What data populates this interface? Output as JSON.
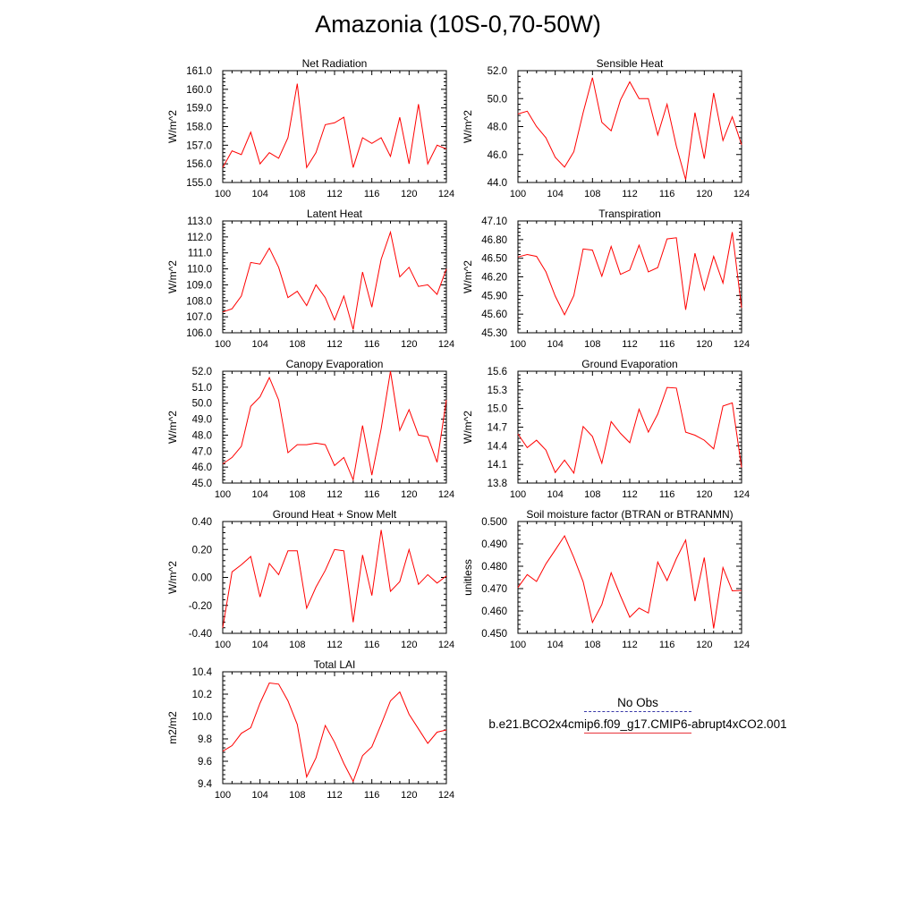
{
  "title": "Amazonia (10S-0,70-50W)",
  "colors": {
    "series": "#ff0000",
    "obs": "#3a3aa8"
  },
  "legend": {
    "obs_label": "No Obs",
    "model_label": "b.e21.BCO2x4cmip6.f09_g17.CMIP6-abrupt4xCO2.001"
  },
  "chart_data": [
    {
      "type": "line",
      "title": "Net Radiation",
      "ylabel": "W/m^2",
      "xlim": [
        100,
        124
      ],
      "ylim": [
        155,
        161
      ],
      "xticks": [
        100,
        104,
        108,
        112,
        116,
        120,
        124
      ],
      "xtick_labels": [
        "100",
        "104",
        "108",
        "112",
        "116",
        "120",
        "124"
      ],
      "yticks": [
        155,
        156,
        157,
        158,
        159,
        160,
        161
      ],
      "ytick_labels": [
        "155.0",
        "156.0",
        "157.0",
        "158.0",
        "159.0",
        "160.0",
        "161.0"
      ],
      "x": [
        100,
        101,
        102,
        103,
        104,
        105,
        106,
        107,
        108,
        109,
        110,
        111,
        112,
        113,
        114,
        115,
        116,
        117,
        118,
        119,
        120,
        121,
        122,
        123,
        124
      ],
      "values": [
        155.8,
        156.7,
        156.5,
        157.7,
        156.0,
        156.6,
        156.3,
        157.4,
        160.3,
        155.8,
        156.6,
        158.1,
        158.2,
        158.5,
        155.8,
        157.4,
        157.1,
        157.4,
        156.4,
        158.5,
        156.0,
        159.2,
        156.0,
        157.0,
        156.8
      ]
    },
    {
      "type": "line",
      "title": "Sensible Heat",
      "ylabel": "W/m^2",
      "xlim": [
        100,
        124
      ],
      "ylim": [
        44,
        52
      ],
      "xticks": [
        100,
        104,
        108,
        112,
        116,
        120,
        124
      ],
      "xtick_labels": [
        "100",
        "104",
        "108",
        "112",
        "116",
        "120",
        "124"
      ],
      "yticks": [
        44,
        46,
        48,
        50,
        52
      ],
      "ytick_labels": [
        "44.0",
        "46.0",
        "48.0",
        "50.0",
        "52.0"
      ],
      "x": [
        100,
        101,
        102,
        103,
        104,
        105,
        106,
        107,
        108,
        109,
        110,
        111,
        112,
        113,
        114,
        115,
        116,
        117,
        118,
        119,
        120,
        121,
        122,
        123,
        124
      ],
      "values": [
        48.9,
        49.1,
        48.0,
        47.2,
        45.8,
        45.1,
        46.2,
        49.0,
        51.5,
        48.3,
        47.7,
        49.9,
        51.2,
        50.0,
        50.0,
        47.4,
        49.6,
        46.6,
        44.2,
        49.0,
        45.7,
        50.4,
        47.0,
        48.7,
        46.7
      ]
    },
    {
      "type": "line",
      "title": "Latent Heat",
      "ylabel": "W/m^2",
      "xlim": [
        100,
        124
      ],
      "ylim": [
        106,
        113
      ],
      "xticks": [
        100,
        104,
        108,
        112,
        116,
        120,
        124
      ],
      "xtick_labels": [
        "100",
        "104",
        "108",
        "112",
        "116",
        "120",
        "124"
      ],
      "yticks": [
        106,
        107,
        108,
        109,
        110,
        111,
        112,
        113
      ],
      "ytick_labels": [
        "106.0",
        "107.0",
        "108.0",
        "109.0",
        "110.0",
        "111.0",
        "112.0",
        "113.0"
      ],
      "x": [
        100,
        101,
        102,
        103,
        104,
        105,
        106,
        107,
        108,
        109,
        110,
        111,
        112,
        113,
        114,
        115,
        116,
        117,
        118,
        119,
        120,
        121,
        122,
        123,
        124
      ],
      "values": [
        107.3,
        107.5,
        108.3,
        110.4,
        110.3,
        111.3,
        110.1,
        108.2,
        108.6,
        107.7,
        109.0,
        108.2,
        106.8,
        108.3,
        106.2,
        109.8,
        107.6,
        110.6,
        112.3,
        109.5,
        110.1,
        108.9,
        109.0,
        108.4,
        110.0
      ]
    },
    {
      "type": "line",
      "title": "Transpiration",
      "ylabel": "W/m^2",
      "xlim": [
        100,
        124
      ],
      "ylim": [
        45.3,
        47.1
      ],
      "xticks": [
        100,
        104,
        108,
        112,
        116,
        120,
        124
      ],
      "xtick_labels": [
        "100",
        "104",
        "108",
        "112",
        "116",
        "120",
        "124"
      ],
      "yticks": [
        45.3,
        45.6,
        45.9,
        46.2,
        46.5,
        46.8,
        47.1
      ],
      "ytick_labels": [
        "45.30",
        "45.60",
        "45.90",
        "46.20",
        "46.50",
        "46.80",
        "47.10"
      ],
      "x": [
        100,
        101,
        102,
        103,
        104,
        105,
        106,
        107,
        108,
        109,
        110,
        111,
        112,
        113,
        114,
        115,
        116,
        117,
        118,
        119,
        120,
        121,
        122,
        123,
        124
      ],
      "values": [
        46.52,
        46.56,
        46.53,
        46.28,
        45.89,
        45.59,
        45.9,
        46.65,
        46.63,
        46.21,
        46.69,
        46.24,
        46.31,
        46.71,
        46.28,
        46.35,
        46.81,
        46.83,
        45.67,
        46.58,
        45.99,
        46.53,
        46.1,
        46.92,
        45.7
      ]
    },
    {
      "type": "line",
      "title": "Canopy Evaporation",
      "ylabel": "W/m^2",
      "xlim": [
        100,
        124
      ],
      "ylim": [
        45,
        52
      ],
      "xticks": [
        100,
        104,
        108,
        112,
        116,
        120,
        124
      ],
      "xtick_labels": [
        "100",
        "104",
        "108",
        "112",
        "116",
        "120",
        "124"
      ],
      "yticks": [
        45,
        46,
        47,
        48,
        49,
        50,
        51,
        52
      ],
      "ytick_labels": [
        "45.0",
        "46.0",
        "47.0",
        "48.0",
        "49.0",
        "50.0",
        "51.0",
        "52.0"
      ],
      "x": [
        100,
        101,
        102,
        103,
        104,
        105,
        106,
        107,
        108,
        109,
        110,
        111,
        112,
        113,
        114,
        115,
        116,
        117,
        118,
        119,
        120,
        121,
        122,
        123,
        124
      ],
      "values": [
        46.2,
        46.6,
        47.3,
        49.8,
        50.4,
        51.6,
        50.2,
        46.9,
        47.4,
        47.4,
        47.5,
        47.4,
        46.1,
        46.6,
        45.2,
        48.6,
        45.5,
        48.4,
        52.0,
        48.3,
        49.6,
        48.0,
        47.9,
        46.3,
        50.2
      ]
    },
    {
      "type": "line",
      "title": "Ground Evaporation",
      "ylabel": "W/m^2",
      "xlim": [
        100,
        124
      ],
      "ylim": [
        13.8,
        15.6
      ],
      "xticks": [
        100,
        104,
        108,
        112,
        116,
        120,
        124
      ],
      "xtick_labels": [
        "100",
        "104",
        "108",
        "112",
        "116",
        "120",
        "124"
      ],
      "yticks": [
        13.8,
        14.1,
        14.4,
        14.7,
        15.0,
        15.3,
        15.6
      ],
      "ytick_labels": [
        "13.8",
        "14.1",
        "14.4",
        "14.7",
        "15.0",
        "15.3",
        "15.6"
      ],
      "x": [
        100,
        101,
        102,
        103,
        104,
        105,
        106,
        107,
        108,
        109,
        110,
        111,
        112,
        113,
        114,
        115,
        116,
        117,
        118,
        119,
        120,
        121,
        122,
        123,
        124
      ],
      "values": [
        14.59,
        14.37,
        14.49,
        14.33,
        13.97,
        14.17,
        13.96,
        14.71,
        14.55,
        14.12,
        14.79,
        14.6,
        14.45,
        14.99,
        14.62,
        14.91,
        15.34,
        15.33,
        14.62,
        14.57,
        14.49,
        14.35,
        15.04,
        15.09,
        14.05
      ]
    },
    {
      "type": "line",
      "title": "Ground Heat + Snow Melt",
      "ylabel": "W/m^2",
      "xlim": [
        100,
        124
      ],
      "ylim": [
        -0.4,
        0.4
      ],
      "xticks": [
        100,
        104,
        108,
        112,
        116,
        120,
        124
      ],
      "xtick_labels": [
        "100",
        "104",
        "108",
        "112",
        "116",
        "120",
        "124"
      ],
      "yticks": [
        -0.4,
        -0.2,
        0.0,
        0.2,
        0.4
      ],
      "ytick_labels": [
        "-0.40",
        "-0.20",
        "0.00",
        "0.20",
        "0.40"
      ],
      "x": [
        100,
        101,
        102,
        103,
        104,
        105,
        106,
        107,
        108,
        109,
        110,
        111,
        112,
        113,
        114,
        115,
        116,
        117,
        118,
        119,
        120,
        121,
        122,
        123,
        124
      ],
      "values": [
        -0.36,
        0.04,
        0.09,
        0.15,
        -0.14,
        0.1,
        0.02,
        0.19,
        0.19,
        -0.22,
        -0.07,
        0.05,
        0.2,
        0.19,
        -0.32,
        0.16,
        -0.13,
        0.34,
        -0.1,
        -0.03,
        0.2,
        -0.05,
        0.02,
        -0.04,
        0.01
      ]
    },
    {
      "type": "line",
      "title": "Soil moisture factor (BTRAN or BTRANMN)",
      "ylabel": "unitless",
      "xlim": [
        100,
        124
      ],
      "ylim": [
        0.45,
        0.5
      ],
      "xticks": [
        100,
        104,
        108,
        112,
        116,
        120,
        124
      ],
      "xtick_labels": [
        "100",
        "104",
        "108",
        "112",
        "116",
        "120",
        "124"
      ],
      "yticks": [
        0.45,
        0.46,
        0.47,
        0.48,
        0.49,
        0.5
      ],
      "ytick_labels": [
        "0.450",
        "0.460",
        "0.470",
        "0.480",
        "0.490",
        "0.500"
      ],
      "x": [
        100,
        101,
        102,
        103,
        104,
        105,
        106,
        107,
        108,
        109,
        110,
        111,
        112,
        113,
        114,
        115,
        116,
        117,
        118,
        119,
        120,
        121,
        122,
        123,
        124
      ],
      "values": [
        0.4705,
        0.4763,
        0.4732,
        0.4811,
        0.4873,
        0.4936,
        0.4839,
        0.4731,
        0.4549,
        0.4629,
        0.4771,
        0.4668,
        0.4572,
        0.4613,
        0.4591,
        0.4819,
        0.4736,
        0.4834,
        0.4917,
        0.4644,
        0.4839,
        0.4522,
        0.4794,
        0.469,
        0.4692
      ]
    },
    {
      "type": "line",
      "title": "Total LAI",
      "ylabel": "m2/m2",
      "xlim": [
        100,
        124
      ],
      "ylim": [
        9.4,
        10.4
      ],
      "xticks": [
        100,
        104,
        108,
        112,
        116,
        120,
        124
      ],
      "xtick_labels": [
        "100",
        "104",
        "108",
        "112",
        "116",
        "120",
        "124"
      ],
      "yticks": [
        9.4,
        9.6,
        9.8,
        10.0,
        10.2,
        10.4
      ],
      "ytick_labels": [
        "9.4",
        "9.6",
        "9.8",
        "10.0",
        "10.2",
        "10.4"
      ],
      "x": [
        100,
        101,
        102,
        103,
        104,
        105,
        106,
        107,
        108,
        109,
        110,
        111,
        112,
        113,
        114,
        115,
        116,
        117,
        118,
        119,
        120,
        121,
        122,
        123,
        124
      ],
      "values": [
        9.69,
        9.74,
        9.85,
        9.9,
        10.12,
        10.3,
        10.29,
        10.14,
        9.93,
        9.46,
        9.63,
        9.92,
        9.77,
        9.58,
        9.42,
        9.65,
        9.73,
        9.93,
        10.14,
        10.22,
        10.02,
        9.89,
        9.76,
        9.86,
        9.88
      ]
    }
  ]
}
